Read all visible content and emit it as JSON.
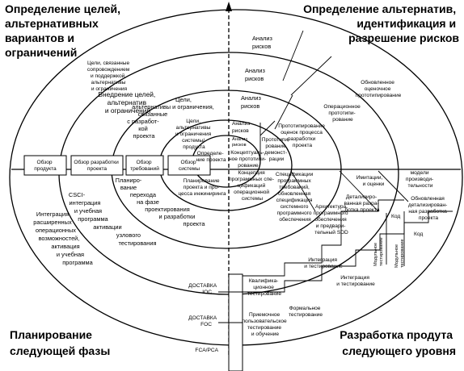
{
  "quadrants": {
    "top_left": [
      "Определение целей,",
      "альтернативных",
      "вариантов и",
      "ограничений"
    ],
    "top_right": [
      "Определение альтернатив,",
      "идентификация и",
      "разрешение рисков"
    ],
    "bottom_left": [
      "Планирование",
      "следующей фазы"
    ],
    "bottom_right": [
      "Разработка продута",
      "следующего уровня"
    ]
  },
  "risk_analysis": {
    "r4": [
      "Анализ",
      "рисков"
    ],
    "r3": [
      "Анализ",
      "рисков"
    ],
    "r2": [
      "Анализ",
      "рисков"
    ],
    "r1": [
      "Анализ",
      "рисков"
    ],
    "r0": [
      "Анализ",
      "рисков"
    ]
  },
  "goals": {
    "r4": [
      "Цели, связанные",
      "сопровождением",
      "и поддержкой,",
      "альтернативы",
      "и ограничения"
    ],
    "r3": [
      "Внедрение целей,",
      "альтернатив",
      "и ограничений"
    ],
    "r2": [
      "Цели,",
      "альтернативы и ограничения,",
      "связанные",
      "с разработ-",
      "кой",
      "проекта"
    ],
    "r1": [
      "Цели,",
      "альтернативы",
      "и ограничения",
      "системы/",
      "продукта"
    ],
    "r0": [
      "Определе-",
      "ние проекта"
    ]
  },
  "prototyping": {
    "r4": [
      "Обновленное",
      "оценочное",
      "прототипирование"
    ],
    "r3": [
      "Операционное",
      "прототипи-",
      "рование"
    ],
    "r2": [
      "Прототипирование",
      "оценок процесса",
      "разработки",
      "проекта"
    ],
    "r1": [
      "Прототипи-",
      "рование",
      "демонст-",
      "рации"
    ],
    "r0": [
      "Концептуаль-",
      "ное прототипи-",
      "рование"
    ]
  },
  "reviews": {
    "product": [
      "Обзор",
      "продукта"
    ],
    "design": [
      "Обзор разработки",
      "проекта"
    ],
    "requirements": [
      "Обзор",
      "требований"
    ],
    "system": [
      "Обзор",
      "системы"
    ]
  },
  "planning": {
    "r0": [
      "Планирование",
      "проекта и про-",
      "цесса инжиниринга"
    ],
    "r1": [
      "Планиро-",
      "вание",
      "перехода",
      "на фазе",
      "проектирования",
      "и разработки",
      "проекта"
    ],
    "r2": [
      "CSCI-",
      "интеграция",
      "и учебная",
      "программа",
      "активации",
      "узлового",
      "тестирования"
    ],
    "r3": [
      "Интеграция",
      "расширенных",
      "операционных",
      "возможностей,",
      "активация",
      "и учебная",
      "программа"
    ]
  },
  "development": {
    "concept": [
      "Концепция",
      "программных спе-",
      "цификаций",
      "операционной",
      "системы"
    ],
    "specs": [
      "Спецификации",
      "программных",
      "требований,",
      "обновленная",
      "спецификация",
      "системного",
      "программного",
      "обеспечения"
    ],
    "architecture": [
      "Архитектура",
      "программного",
      "обеспечения",
      "и предвари-",
      "тельный SDD"
    ],
    "simulations": [
      "Имитации,",
      "и оценки"
    ],
    "models": [
      "модели",
      "производи-",
      "тельности"
    ],
    "detailed_design": [
      "Детализиро-",
      "ванная разра-",
      "ботка проекта"
    ],
    "updated_design": [
      "Обновленная",
      "детализирован-",
      "ная разработка",
      "проекта"
    ],
    "code1": "Код",
    "code2": "Код",
    "module_test1": [
      "Модульное",
      "тестирование"
    ],
    "module_test2": [
      "Модульное",
      "тестирование"
    ],
    "integration1": [
      "Интеграция",
      "и тестирование"
    ],
    "integration2": [
      "Интеграция",
      "и тестирование"
    ],
    "qualification": [
      "Квалифика-",
      "ционное",
      "тестирование"
    ],
    "acceptance": [
      "Приемочное",
      "пользовательское",
      "тестирование",
      "и обучение"
    ],
    "formal": [
      "Формальное",
      "тестирование"
    ]
  },
  "deliveries": {
    "ioc": [
      "ДОСТАВКА",
      "IOC"
    ],
    "foc": [
      "ДОСТАВКА",
      "FOC"
    ],
    "fca": "FCA/PCA"
  }
}
